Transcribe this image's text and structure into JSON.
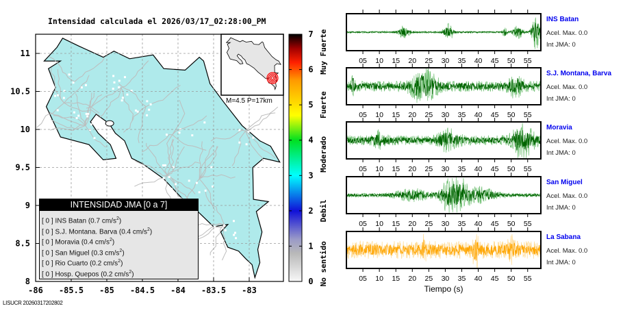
{
  "title": "Intensidad calculada el 2026/03/17_02:28:00_PM",
  "footer": "LISUCR 20260317202802",
  "map": {
    "x_ticks": [
      "-86",
      "-85.5",
      "-85",
      "-84.5",
      "-84",
      "-83.5",
      "-83"
    ],
    "y_ticks": [
      "11",
      "10.5",
      "10",
      "9.5",
      "9",
      "8.5",
      "8"
    ],
    "x_range": [
      -86,
      -82.5
    ],
    "y_range": [
      8,
      11.25
    ],
    "land_color": "#afeaeb",
    "road_color": "#bdbdbd",
    "inset_land_color": "#e6e6e6",
    "epicenter_color": "#ff0000",
    "magnitude_label": "M=4.5 P=17km"
  },
  "legend": {
    "header": "INTENSIDAD JMA [0 a 7]",
    "items": [
      {
        "int": "[ 0 ]",
        "station": "INS Batan",
        "accel": "(0.7 cm/s",
        "sup": "2",
        "close": ")"
      },
      {
        "int": "[ 0 ]",
        "station": "S.J. Montana. Barva",
        "accel": "(0.4 cm/s",
        "sup": "2",
        "close": ")"
      },
      {
        "int": "[ 0 ]",
        "station": "Moravia",
        "accel": "(0.4 cm/s",
        "sup": "2",
        "close": ")"
      },
      {
        "int": "[ 0 ]",
        "station": "San Miguel",
        "accel": "(0.3 cm/s",
        "sup": "2",
        "close": ")"
      },
      {
        "int": "[ 0 ]",
        "station": "Rio Cuarto",
        "accel": "(0.2 cm/s",
        "sup": "2",
        "close": ")"
      },
      {
        "int": "[ 0 ]",
        "station": "Hosp. Quepos",
        "accel": "(0.2 cm/s",
        "sup": "2",
        "close": ")"
      }
    ]
  },
  "colorbar": {
    "ticks": [
      "0",
      "1",
      "2",
      "3",
      "4",
      "5",
      "6",
      "7"
    ],
    "range": [
      0,
      7
    ],
    "category_labels": [
      "No sentido",
      "Debil",
      "Moderado",
      "Fuerte",
      "Muy Fuerte"
    ],
    "stops": [
      {
        "v": 0,
        "color": "#f8f8f8"
      },
      {
        "v": 0.8,
        "color": "#b8b8b8"
      },
      {
        "v": 1.2,
        "color": "#9a9ac8"
      },
      {
        "v": 2.0,
        "color": "#1010d8"
      },
      {
        "v": 3.0,
        "color": "#00ffff"
      },
      {
        "v": 4.0,
        "color": "#00e020"
      },
      {
        "v": 4.7,
        "color": "#ffff00"
      },
      {
        "v": 5.7,
        "color": "#ff9900"
      },
      {
        "v": 6.2,
        "color": "#ff2000"
      },
      {
        "v": 6.6,
        "color": "#a00000"
      },
      {
        "v": 7.0,
        "color": "#000000"
      }
    ]
  },
  "waveforms": {
    "time_ticks": [
      "05",
      "10",
      "15",
      "20",
      "25",
      "30",
      "35",
      "40",
      "45",
      "50",
      "55"
    ],
    "time_range_s": [
      0,
      59
    ],
    "xlabel": "Tiempo (s)",
    "acel_label": "Acel. Max. 0.0",
    "int_label": "Int JMA: 0",
    "stations": [
      {
        "name": "INS Batan",
        "color": "#006400",
        "light": "#4caf50",
        "base": 0.06,
        "bursts": [
          [
            17.5,
            1.5,
            0.35
          ],
          [
            31,
            1.5,
            0.45
          ],
          [
            48,
            0.6,
            0.3
          ],
          [
            52,
            1.5,
            0.35
          ],
          [
            57.5,
            1.2,
            1.0
          ]
        ]
      },
      {
        "name": "S.J. Montana, Barva",
        "color": "#006400",
        "light": "#4caf50",
        "base": 0.3,
        "bursts": [
          [
            23.5,
            3.5,
            0.95
          ],
          [
            51.5,
            2.0,
            0.5
          ],
          [
            2.0,
            0.5,
            0.5
          ]
        ]
      },
      {
        "name": "Moravia",
        "color": "#006400",
        "light": "#4caf50",
        "base": 0.28,
        "bursts": [
          [
            31,
            3.0,
            0.5
          ],
          [
            53.5,
            3.0,
            0.95
          ],
          [
            10,
            2,
            0.35
          ]
        ]
      },
      {
        "name": "San Miguel",
        "color": "#006400",
        "light": "#4caf50",
        "base": 0.12,
        "bursts": [
          [
            31,
            2.5,
            0.95
          ],
          [
            34.5,
            2.5,
            0.75
          ],
          [
            40,
            5,
            0.4
          ],
          [
            20,
            5,
            0.3
          ]
        ]
      },
      {
        "name": "La Sabana",
        "color": "#ffa500",
        "light": "#ffd27a",
        "base": 0.5,
        "bursts": [
          [
            39.2,
            0.7,
            1.0
          ],
          [
            50,
            0.8,
            0.6
          ],
          [
            23.5,
            0.6,
            0.5
          ]
        ]
      }
    ]
  }
}
